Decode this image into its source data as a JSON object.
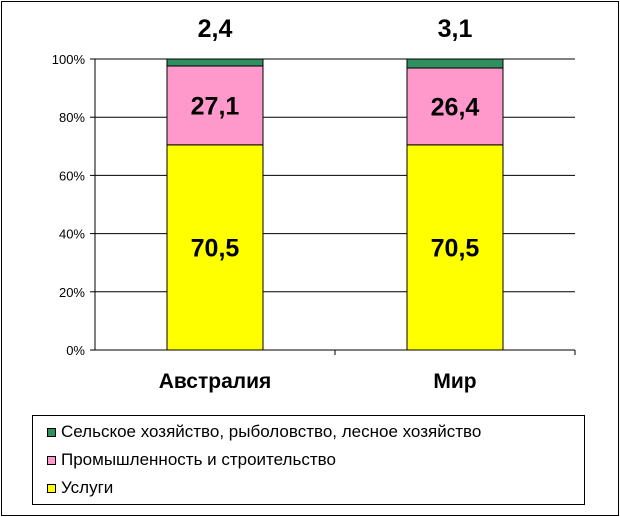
{
  "chart_data": {
    "type": "bar",
    "stacked": true,
    "categories": [
      "Австралия",
      "Мир"
    ],
    "series": [
      {
        "name": "Услуги",
        "color": "#ffff00",
        "values": [
          70.5,
          70.5
        ],
        "labels": [
          "70,5",
          "70,5"
        ]
      },
      {
        "name": "Промышленность и строительство",
        "color": "#ff99cc",
        "values": [
          27.1,
          26.4
        ],
        "labels": [
          "27,1",
          "26,4"
        ]
      },
      {
        "name": "Сельское хозяйство, рыболовство, лесное хозяйство",
        "color": "#2f8f5f",
        "values": [
          2.4,
          3.1
        ],
        "labels": [
          "2,4",
          "3,1"
        ]
      }
    ],
    "yticks": [
      "0%",
      "20%",
      "40%",
      "60%",
      "80%",
      "100%"
    ],
    "ylim": [
      0,
      100
    ],
    "grid": true,
    "legend_position": "bottom",
    "legend_order": [
      2,
      1,
      0
    ]
  }
}
